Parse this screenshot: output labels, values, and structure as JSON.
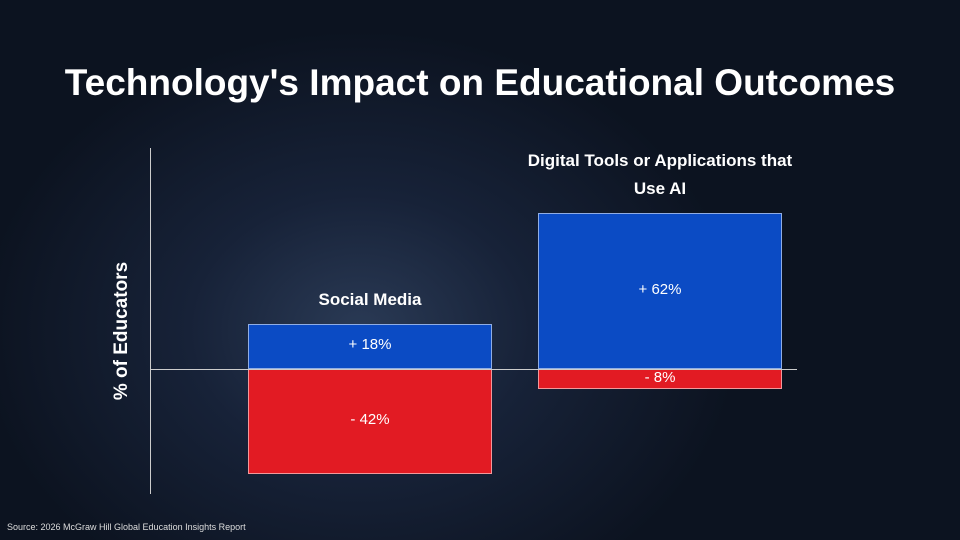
{
  "chart_data": {
    "type": "diverging-bar",
    "title": "Technology's Impact on Educational Outcomes",
    "y_label": "% of Educators",
    "source": "Source: 2026 McGraw Hill Global Education Insights Report",
    "categories": [
      "Social Media",
      "Digital Tools or Applications that Use AI"
    ],
    "series": [
      {
        "color": "#0b4bc4",
        "values": [
          18,
          62
        ],
        "value_labels": [
          "+ 18%",
          "+ 62%"
        ]
      },
      {
        "color": "#e21b23",
        "values": [
          -42,
          -8
        ],
        "value_labels": [
          "-  42%",
          "-  8%"
        ]
      }
    ],
    "ylim": [
      -50,
      88
    ]
  }
}
